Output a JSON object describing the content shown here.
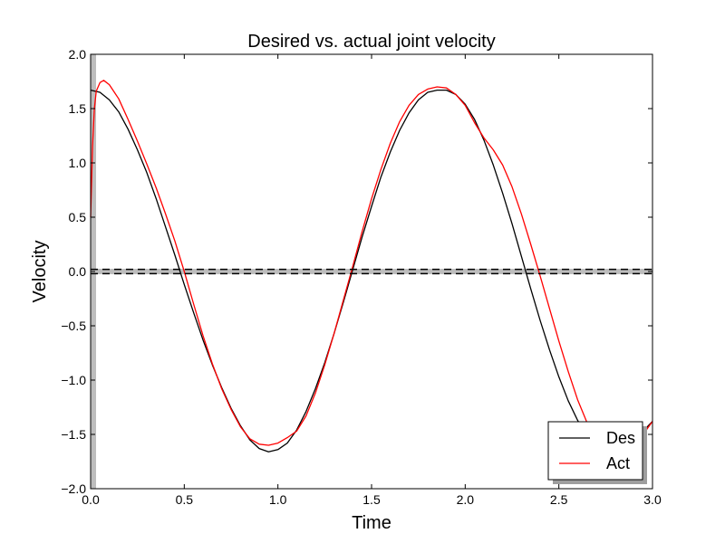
{
  "chart_data": {
    "type": "line",
    "title": "Desired vs. actual joint velocity",
    "xlabel": "Time",
    "ylabel": "Velocity",
    "xlim": [
      0.0,
      3.0
    ],
    "ylim": [
      -2.0,
      2.0
    ],
    "x_ticks": [
      "0.0",
      "0.5",
      "1.0",
      "1.5",
      "2.0",
      "2.5",
      "3.0"
    ],
    "y_ticks": [
      "2.0",
      "1.5",
      "1.0",
      "0.5",
      "0.0",
      "−0.5",
      "−1.0",
      "−1.5",
      "−2.0"
    ],
    "grid": false,
    "legend": "bottom-right",
    "series": [
      {
        "name": "Des",
        "color": "#000000",
        "x": [
          0.0,
          0.05,
          0.1,
          0.15,
          0.2,
          0.25,
          0.3,
          0.35,
          0.4,
          0.45,
          0.5,
          0.55,
          0.6,
          0.65,
          0.7,
          0.75,
          0.8,
          0.85,
          0.9,
          0.95,
          1.0,
          1.05,
          1.1,
          1.15,
          1.2,
          1.25,
          1.3,
          1.35,
          1.4,
          1.45,
          1.5,
          1.55,
          1.6,
          1.65,
          1.7,
          1.75,
          1.8,
          1.85,
          1.9,
          1.95,
          2.0,
          2.05,
          2.1,
          2.15,
          2.2,
          2.25,
          2.3,
          2.35,
          2.4,
          2.45,
          2.5,
          2.55,
          2.6,
          2.65,
          2.7,
          2.75,
          2.8,
          2.85,
          2.9,
          2.95,
          3.0
        ],
        "values": [
          1.67,
          1.65,
          1.58,
          1.47,
          1.31,
          1.12,
          0.91,
          0.67,
          0.41,
          0.15,
          -0.12,
          -0.38,
          -0.63,
          -0.86,
          -1.07,
          -1.26,
          -1.42,
          -1.55,
          -1.63,
          -1.66,
          -1.64,
          -1.58,
          -1.46,
          -1.29,
          -1.08,
          -0.84,
          -0.57,
          -0.28,
          0.02,
          0.32,
          0.6,
          0.87,
          1.1,
          1.3,
          1.46,
          1.58,
          1.65,
          1.67,
          1.67,
          1.63,
          1.54,
          1.4,
          1.21,
          0.98,
          0.72,
          0.44,
          0.14,
          -0.16,
          -0.45,
          -0.72,
          -0.97,
          -1.19,
          -1.37,
          -1.51,
          -1.6,
          -1.65,
          -1.66,
          -1.62,
          -1.55,
          -1.47,
          -1.38
        ]
      },
      {
        "name": "Act",
        "color": "#ff0000",
        "x": [
          0.0,
          0.01,
          0.02,
          0.03,
          0.05,
          0.07,
          0.1,
          0.15,
          0.2,
          0.25,
          0.3,
          0.35,
          0.4,
          0.45,
          0.5,
          0.55,
          0.6,
          0.65,
          0.7,
          0.75,
          0.8,
          0.85,
          0.9,
          0.95,
          1.0,
          1.05,
          1.1,
          1.15,
          1.2,
          1.25,
          1.3,
          1.35,
          1.4,
          1.45,
          1.5,
          1.55,
          1.6,
          1.65,
          1.7,
          1.75,
          1.8,
          1.85,
          1.9,
          1.95,
          2.0,
          2.05,
          2.1,
          2.15,
          2.2,
          2.25,
          2.3,
          2.35,
          2.4,
          2.45,
          2.5,
          2.55,
          2.6,
          2.65,
          2.7,
          2.75,
          2.8,
          2.85,
          2.9,
          2.95,
          3.0
        ],
        "values": [
          0.5,
          1.15,
          1.5,
          1.66,
          1.74,
          1.76,
          1.72,
          1.59,
          1.4,
          1.2,
          0.99,
          0.77,
          0.53,
          0.28,
          0.0,
          -0.3,
          -0.59,
          -0.85,
          -1.08,
          -1.27,
          -1.43,
          -1.54,
          -1.59,
          -1.6,
          -1.58,
          -1.53,
          -1.47,
          -1.33,
          -1.12,
          -0.86,
          -0.57,
          -0.26,
          0.05,
          0.37,
          0.67,
          0.94,
          1.18,
          1.38,
          1.53,
          1.63,
          1.68,
          1.7,
          1.69,
          1.63,
          1.53,
          1.37,
          1.23,
          1.12,
          0.98,
          0.78,
          0.53,
          0.25,
          -0.04,
          -0.34,
          -0.64,
          -0.92,
          -1.18,
          -1.39,
          -1.56,
          -1.65,
          -1.68,
          -1.66,
          -1.6,
          -1.5,
          -1.38
        ]
      },
      {
        "name": "",
        "color": "#000000",
        "style": "dashed",
        "x": [
          0.0,
          3.0
        ],
        "values": [
          0.02,
          0.02
        ]
      },
      {
        "name": "",
        "color": "#000000",
        "style": "dashed",
        "x": [
          0.0,
          3.0
        ],
        "values": [
          -0.02,
          -0.02
        ]
      }
    ]
  }
}
